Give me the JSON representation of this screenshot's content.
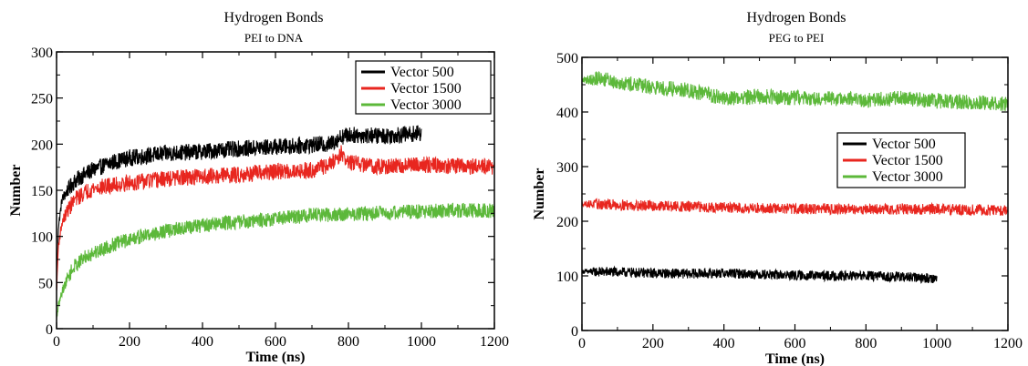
{
  "chart_data": [
    {
      "type": "line",
      "title": "Hydrogen Bonds",
      "subtitle": "PEI to DNA",
      "xlabel": "Time (ns)",
      "ylabel": "Number",
      "xlim": [
        0,
        1200
      ],
      "ylim": [
        0,
        300
      ],
      "xticks": [
        0,
        200,
        400,
        600,
        800,
        1000,
        1200
      ],
      "yticks": [
        0,
        50,
        100,
        150,
        200,
        250,
        300
      ],
      "grid": false,
      "legend_position": "top-right",
      "series": [
        {
          "name": "Vector 500",
          "color": "#000000",
          "noise": 9,
          "x": [
            0,
            5,
            15,
            30,
            50,
            80,
            100,
            150,
            200,
            300,
            400,
            500,
            600,
            700,
            750,
            780,
            800,
            900,
            1000
          ],
          "y": [
            40,
            110,
            140,
            150,
            160,
            168,
            172,
            180,
            185,
            190,
            192,
            195,
            197,
            199,
            200,
            208,
            210,
            209,
            212
          ]
        },
        {
          "name": "Vector 1500",
          "color": "#e8261f",
          "noise": 9,
          "x": [
            0,
            5,
            15,
            30,
            50,
            80,
            100,
            200,
            300,
            400,
            500,
            600,
            700,
            750,
            780,
            800,
            900,
            1000,
            1100,
            1200
          ],
          "y": [
            40,
            90,
            115,
            128,
            140,
            148,
            152,
            158,
            162,
            165,
            167,
            170,
            172,
            178,
            190,
            180,
            175,
            178,
            176,
            175
          ]
        },
        {
          "name": "Vector 3000",
          "color": "#5cb83a",
          "noise": 8,
          "x": [
            0,
            5,
            15,
            30,
            50,
            80,
            100,
            150,
            200,
            300,
            400,
            500,
            600,
            700,
            800,
            900,
            1000,
            1100,
            1200
          ],
          "y": [
            10,
            25,
            40,
            55,
            68,
            78,
            82,
            90,
            97,
            106,
            112,
            116,
            119,
            123,
            124,
            126,
            127,
            128,
            128
          ]
        }
      ]
    },
    {
      "type": "line",
      "title": "Hydrogen Bonds",
      "subtitle": "PEG to PEI",
      "xlabel": "Time (ns)",
      "ylabel": "Number",
      "xlim": [
        0,
        1200
      ],
      "ylim": [
        0,
        500
      ],
      "xticks": [
        0,
        200,
        400,
        600,
        800,
        1000,
        1200
      ],
      "yticks": [
        0,
        100,
        200,
        300,
        400,
        500
      ],
      "grid": false,
      "legend_position": "middle-right",
      "series": [
        {
          "name": "Vector 500",
          "color": "#000000",
          "noise": 9,
          "x": [
            0,
            100,
            200,
            300,
            400,
            500,
            600,
            700,
            800,
            900,
            1000
          ],
          "y": [
            108,
            107,
            105,
            104,
            105,
            103,
            101,
            100,
            100,
            98,
            95
          ]
        },
        {
          "name": "Vector 1500",
          "color": "#e8261f",
          "noise": 10,
          "x": [
            0,
            200,
            400,
            600,
            800,
            1000,
            1200
          ],
          "y": [
            232,
            228,
            225,
            223,
            222,
            222,
            220
          ]
        },
        {
          "name": "Vector 3000",
          "color": "#5cb83a",
          "noise": 14,
          "x": [
            0,
            50,
            100,
            200,
            300,
            400,
            500,
            600,
            700,
            800,
            900,
            1000,
            1100,
            1200
          ],
          "y": [
            458,
            462,
            455,
            445,
            440,
            425,
            428,
            426,
            424,
            422,
            425,
            420,
            418,
            415
          ]
        }
      ]
    }
  ]
}
